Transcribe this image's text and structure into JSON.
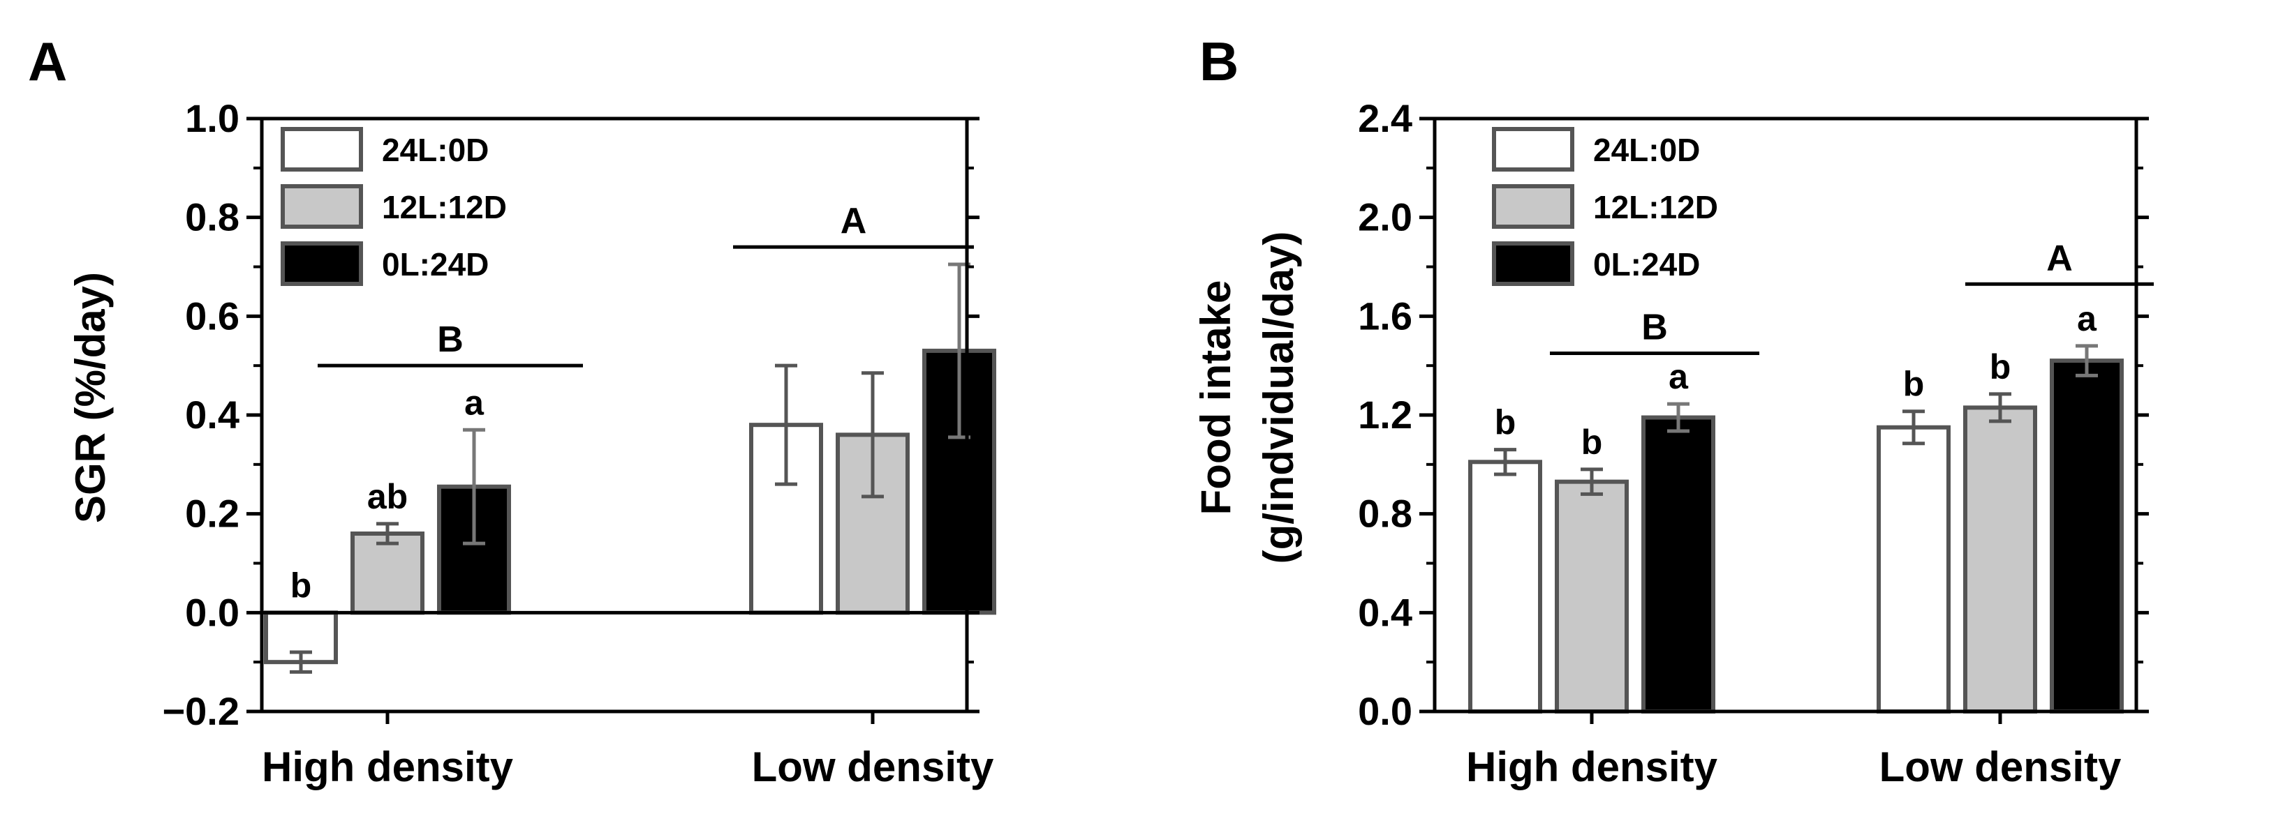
{
  "chart_data": [
    {
      "panel": "A",
      "type": "bar",
      "ylabel": "SGR (%/day)",
      "xlabel": "",
      "ylim": [
        -0.2,
        1.0
      ],
      "yticks": [
        -0.2,
        0.0,
        0.2,
        0.4,
        0.6,
        0.8,
        1.0
      ],
      "ytick_labels": [
        "−0.2",
        "0.0",
        "0.2",
        "0.4",
        "0.6",
        "0.8",
        "1.0"
      ],
      "categories": [
        "High density",
        "Low density"
      ],
      "legend_position": "top-left",
      "series": [
        {
          "name": "24L:0D",
          "fill": "#ffffff",
          "values": [
            -0.1,
            0.38
          ],
          "errors": [
            0.02,
            0.12
          ],
          "letters": [
            "b",
            ""
          ]
        },
        {
          "name": "12L:12D",
          "fill": "#c8c8c8",
          "values": [
            0.16,
            0.36
          ],
          "errors": [
            0.02,
            0.125
          ],
          "letters": [
            "ab",
            ""
          ]
        },
        {
          "name": "0L:24D",
          "fill": "#000000",
          "values": [
            0.255,
            0.53
          ],
          "errors": [
            0.115,
            0.175
          ],
          "letters": [
            "a",
            ""
          ]
        }
      ],
      "group_letters": [
        "B",
        "A"
      ],
      "group_line_y": [
        0.5,
        0.74
      ]
    },
    {
      "panel": "B",
      "type": "bar",
      "ylabel": "Food intake",
      "ylabel2": "(g/indvidual/day)",
      "xlabel": "",
      "ylim": [
        0.0,
        2.4
      ],
      "yticks": [
        0.0,
        0.4,
        0.8,
        1.2,
        1.6,
        2.0,
        2.4
      ],
      "ytick_labels": [
        "0.0",
        "0.4",
        "0.8",
        "1.2",
        "1.6",
        "2.0",
        "2.4"
      ],
      "categories": [
        "High density",
        "Low density"
      ],
      "legend_position": "top-left",
      "series": [
        {
          "name": "24L:0D",
          "fill": "#ffffff",
          "values": [
            1.01,
            1.15
          ],
          "errors": [
            0.05,
            0.065
          ],
          "letters": [
            "b",
            "b"
          ]
        },
        {
          "name": "12L:12D",
          "fill": "#c8c8c8",
          "values": [
            0.93,
            1.23
          ],
          "errors": [
            0.05,
            0.055
          ],
          "letters": [
            "b",
            "b"
          ]
        },
        {
          "name": "0L:24D",
          "fill": "#000000",
          "values": [
            1.19,
            1.42
          ],
          "errors": [
            0.055,
            0.06
          ],
          "letters": [
            "a",
            "a"
          ]
        }
      ],
      "group_letters": [
        "B",
        "A"
      ],
      "group_line_y": [
        1.45,
        1.73
      ]
    }
  ]
}
